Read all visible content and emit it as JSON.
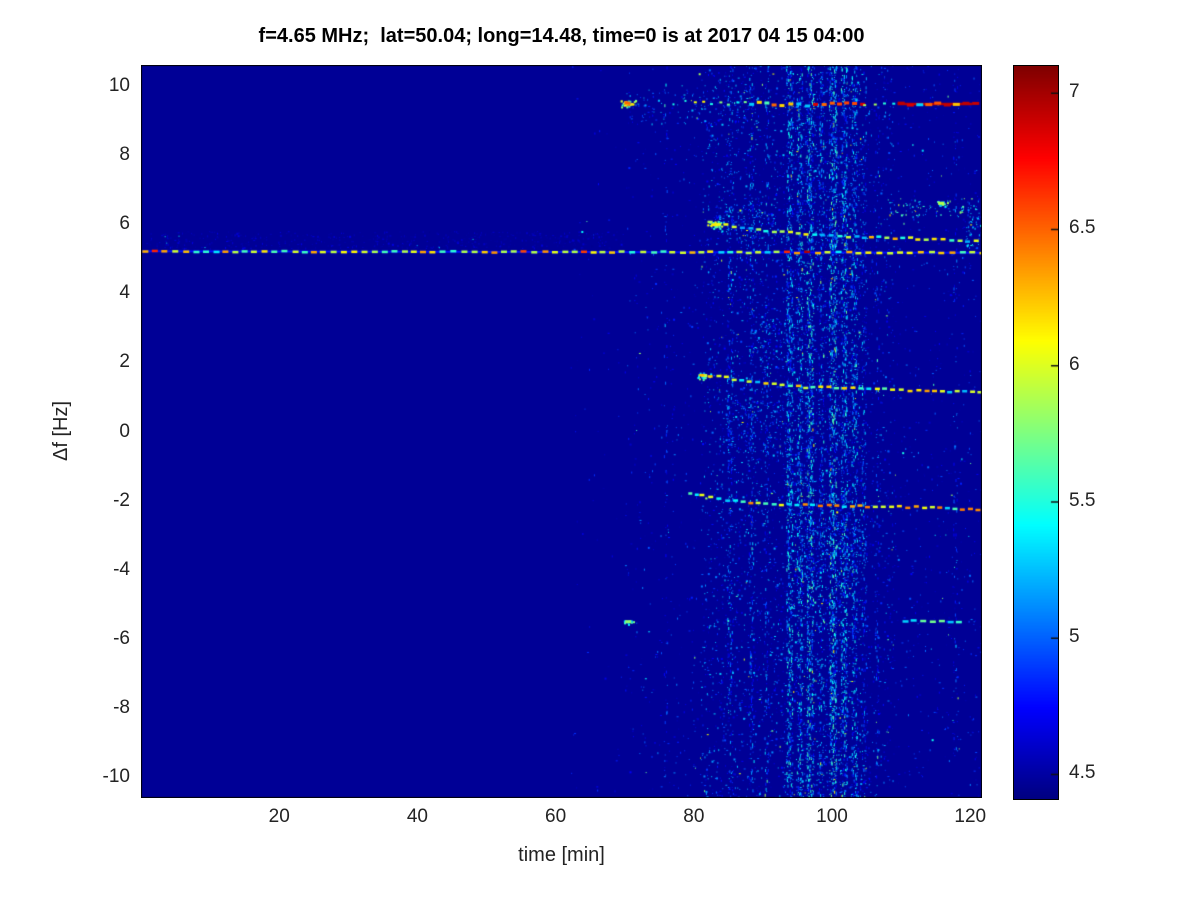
{
  "title": "f=4.65 MHz;  lat=50.04; long=14.48, time=0 is at 2017 04 15 04:00",
  "axes": {
    "xlabel": "time [min]",
    "ylabel": "Δf [Hz]",
    "x_ticks": [
      20,
      40,
      60,
      80,
      100,
      120
    ],
    "y_ticks": [
      10,
      8,
      6,
      4,
      2,
      0,
      -2,
      -4,
      -6,
      -8,
      -10
    ],
    "xlim": [
      0,
      121.7
    ],
    "ylim": [
      -10.6,
      10.6
    ]
  },
  "colorbar": {
    "ticks": [
      7,
      6.5,
      6,
      5.5,
      5,
      4.5
    ],
    "vmin": 4.41,
    "vmax": 7.1
  },
  "chart_data": {
    "type": "heatmap",
    "title": "f=4.65 MHz;  lat=50.04; long=14.48, time=0 is at 2017 04 15 04:00",
    "xlabel": "time [min]",
    "ylabel": "Δf [Hz]",
    "xlim": [
      0,
      121.7
    ],
    "ylim": [
      -10.6,
      10.6
    ],
    "caxis": [
      4.41,
      7.1
    ],
    "colormap": "jet",
    "grid": false,
    "background_value": 4.47,
    "traces": [
      {
        "name": "doppler-line-5.2Hz",
        "points": [
          [
            0.2,
            5.21
          ],
          [
            121.5,
            5.17
          ]
        ],
        "dash": 6,
        "gap": 4,
        "th": 2.5,
        "jit": 0.7,
        "base": {
          "v": 4.78,
          "th": 2
        },
        "palette": [
          [
            5.95,
            35
          ],
          [
            6.15,
            20
          ],
          [
            5.55,
            18
          ],
          [
            6.3,
            10
          ],
          [
            5.35,
            10
          ],
          [
            6.6,
            4
          ],
          [
            6.9,
            3
          ]
        ]
      },
      {
        "name": "trace-9.5Hz-dots",
        "points": [
          [
            71.5,
            9.5
          ],
          [
            80,
            9.5
          ]
        ],
        "dash": 2,
        "gap": 10,
        "th": 2,
        "jit": 2.5,
        "palette": [
          [
            5.2,
            35
          ],
          [
            5.5,
            40
          ],
          [
            5.85,
            25
          ]
        ]
      },
      {
        "name": "trace-9.5Hz-mid",
        "points": [
          [
            80,
            9.5
          ],
          [
            88,
            9.48
          ]
        ],
        "dash": 3,
        "gap": 6,
        "th": 2,
        "jit": 2,
        "palette": [
          [
            5.45,
            40
          ],
          [
            5.75,
            35
          ],
          [
            6.1,
            25
          ]
        ]
      },
      {
        "name": "trace-9.5Hz-dense",
        "points": [
          [
            88,
            9.48
          ],
          [
            104.5,
            9.45
          ]
        ],
        "dash": 5,
        "gap": 3,
        "th": 3,
        "jit": 1.8,
        "palette": [
          [
            6.9,
            22
          ],
          [
            6.55,
            18
          ],
          [
            6.2,
            20
          ],
          [
            5.6,
            22
          ],
          [
            5.25,
            18
          ]
        ]
      },
      {
        "name": "trace-9.5Hz-sparse",
        "points": [
          [
            104.5,
            9.45
          ],
          [
            109.5,
            9.45
          ]
        ],
        "dash": 3,
        "gap": 8,
        "th": 2,
        "jit": 1.5,
        "palette": [
          [
            5.45,
            50
          ],
          [
            5.9,
            30
          ],
          [
            5.15,
            20
          ]
        ]
      },
      {
        "name": "trace-9.5Hz-red",
        "points": [
          [
            109.5,
            9.47
          ],
          [
            120.3,
            9.47
          ]
        ],
        "dash": 7,
        "gap": 2.5,
        "th": 3,
        "jit": 1.2,
        "base": {
          "v": 6.95,
          "th": 2.5
        },
        "palette": [
          [
            6.9,
            35
          ],
          [
            6.55,
            20
          ],
          [
            6.25,
            18
          ],
          [
            5.65,
            15
          ],
          [
            5.35,
            12
          ]
        ]
      },
      {
        "name": "trace-5.8Hz-descending",
        "points": [
          [
            82,
            6.05
          ],
          [
            85,
            5.95
          ],
          [
            89,
            5.84
          ],
          [
            94,
            5.74
          ],
          [
            100,
            5.66
          ],
          [
            108,
            5.6
          ],
          [
            115,
            5.56
          ],
          [
            121.3,
            5.5
          ]
        ],
        "dash": 5,
        "gap": 3,
        "th": 2.5,
        "jit": 1,
        "palette": [
          [
            5.9,
            30
          ],
          [
            6.1,
            22
          ],
          [
            5.5,
            26
          ],
          [
            6.3,
            10
          ],
          [
            5.2,
            12
          ]
        ]
      },
      {
        "name": "trace-1.3Hz",
        "points": [
          [
            80.8,
            1.64
          ],
          [
            83,
            1.6
          ],
          [
            86,
            1.5
          ],
          [
            90,
            1.38
          ],
          [
            94,
            1.3
          ],
          [
            100,
            1.26
          ],
          [
            108,
            1.21
          ],
          [
            121.3,
            1.14
          ]
        ],
        "dash": 5,
        "gap": 3,
        "th": 2.5,
        "jit": 1,
        "palette": [
          [
            6.0,
            28
          ],
          [
            6.2,
            24
          ],
          [
            5.6,
            20
          ],
          [
            6.4,
            14
          ],
          [
            5.3,
            14
          ]
        ]
      },
      {
        "name": "trace-minus2Hz-lead",
        "points": [
          [
            79.2,
            -1.8
          ],
          [
            81,
            -1.86
          ]
        ],
        "dash": 4,
        "gap": 2,
        "th": 2.5,
        "jit": 0.8,
        "palette": [
          [
            5.45,
            60
          ],
          [
            5.7,
            40
          ]
        ]
      },
      {
        "name": "trace-minus2Hz",
        "points": [
          [
            80.8,
            -1.86
          ],
          [
            84,
            -1.96
          ],
          [
            88,
            -2.05
          ],
          [
            93,
            -2.12
          ],
          [
            100,
            -2.15
          ],
          [
            110,
            -2.18
          ],
          [
            121.3,
            -2.28
          ]
        ],
        "dash": 5,
        "gap": 3,
        "th": 2.5,
        "jit": 1,
        "palette": [
          [
            6.0,
            26
          ],
          [
            6.25,
            22
          ],
          [
            5.6,
            22
          ],
          [
            6.45,
            13
          ],
          [
            5.35,
            17
          ]
        ]
      },
      {
        "name": "trace-minus5.5Hz",
        "points": [
          [
            110.2,
            -5.48
          ],
          [
            118.6,
            -5.52
          ]
        ],
        "dash": 6,
        "gap": 3,
        "th": 2.5,
        "jit": 0.8,
        "palette": [
          [
            5.55,
            45
          ],
          [
            5.75,
            30
          ],
          [
            5.3,
            25
          ]
        ]
      }
    ],
    "blobs": [
      {
        "t": 70.4,
        "f": 9.5,
        "r": 5,
        "n": 32,
        "v": [
          5.4,
          6.5
        ]
      },
      {
        "t": 70.5,
        "f": -5.5,
        "r": 3.5,
        "n": 14,
        "v": [
          5.2,
          5.8
        ]
      },
      {
        "t": 83,
        "f": 5.98,
        "r": 6,
        "n": 30,
        "v": [
          5.2,
          6.15
        ]
      },
      {
        "t": 81.5,
        "f": 1.62,
        "r": 5,
        "n": 22,
        "v": [
          5.1,
          5.9
        ]
      },
      {
        "t": 115.8,
        "f": 6.6,
        "r": 4,
        "n": 16,
        "v": [
          5.2,
          5.9
        ]
      }
    ],
    "noise_regions": [
      {
        "t": [
          62,
          70
        ],
        "f": [
          -10.6,
          10.6
        ],
        "d": 0.15,
        "v": [
          4.5,
          4.9
        ]
      },
      {
        "t": [
          70,
          81
        ],
        "f": [
          -10.6,
          10.6
        ],
        "d": 0.7,
        "v": [
          4.5,
          5.1
        ]
      },
      {
        "t": [
          81,
          93.5
        ],
        "f": [
          -10.6,
          10.6
        ],
        "d": 3.5,
        "v": [
          4.5,
          5.3
        ]
      },
      {
        "t": [
          93.5,
          104.5
        ],
        "f": [
          -10.6,
          10.6
        ],
        "d": 6,
        "v": [
          4.5,
          5.4
        ]
      },
      {
        "t": [
          104.5,
          109
        ],
        "f": [
          -10.6,
          10.6
        ],
        "d": 2.5,
        "v": [
          4.5,
          5.2
        ]
      },
      {
        "t": [
          109,
          121.7
        ],
        "f": [
          -10.6,
          10.6
        ],
        "d": 0.9,
        "v": [
          4.5,
          5.1
        ]
      }
    ],
    "noise_bands": [
      {
        "t": [
          0.5,
          70
        ],
        "f": [
          5.3,
          5.8
        ],
        "d": 7,
        "v": [
          4.45,
          4.68
        ]
      },
      {
        "t": [
          70,
          88
        ],
        "f": [
          8.9,
          9.9
        ],
        "d": 3,
        "v": [
          4.7,
          5.3
        ]
      },
      {
        "t": [
          108,
          120.5
        ],
        "f": [
          6.2,
          6.75
        ],
        "d": 4,
        "v": [
          5.0,
          5.8
        ]
      },
      {
        "t": [
          88.5,
          94.5
        ],
        "f": [
          1.8,
          3.3
        ],
        "d": 6,
        "v": [
          4.7,
          5.4
        ]
      },
      {
        "t": [
          83,
          92
        ],
        "f": [
          5.5,
          6.6
        ],
        "d": 5,
        "v": [
          4.7,
          5.4
        ]
      },
      {
        "t": [
          94,
          105
        ],
        "f": [
          -4.6,
          -2.6
        ],
        "d": 4,
        "v": [
          4.7,
          5.4
        ]
      },
      {
        "t": [
          119.3,
          121.6
        ],
        "f": [
          5.3,
          6.7
        ],
        "d": 8,
        "v": [
          4.8,
          5.5
        ]
      },
      {
        "t": [
          84,
          94
        ],
        "f": [
          -0.6,
          0.9
        ],
        "d": 4.5,
        "v": [
          4.7,
          5.3
        ]
      }
    ],
    "streaks": [
      {
        "t": 75.9,
        "w": 0.5,
        "d": 3,
        "v": [
          4.6,
          5.1
        ]
      },
      {
        "t": 85.2,
        "w": 0.8,
        "d": 7,
        "v": [
          4.6,
          5.3
        ]
      },
      {
        "t": 88.3,
        "w": 0.7,
        "d": 7,
        "v": [
          4.6,
          5.3
        ]
      },
      {
        "t": 90.5,
        "w": 0.6,
        "d": 6,
        "v": [
          4.6,
          5.3
        ]
      },
      {
        "t": 93.8,
        "w": 0.9,
        "d": 14,
        "v": [
          4.7,
          5.6
        ]
      },
      {
        "t": 95.3,
        "w": 0.8,
        "d": 12,
        "v": [
          4.7,
          5.6
        ]
      },
      {
        "t": 96.8,
        "w": 1.0,
        "d": 16,
        "v": [
          4.7,
          5.7
        ]
      },
      {
        "t": 98.4,
        "w": 0.7,
        "d": 9,
        "v": [
          4.6,
          5.4
        ]
      },
      {
        "t": 100.1,
        "w": 1.1,
        "d": 18,
        "v": [
          4.7,
          5.7
        ]
      },
      {
        "t": 101.7,
        "w": 0.9,
        "d": 14,
        "v": [
          4.7,
          5.6
        ]
      },
      {
        "t": 103.2,
        "w": 0.8,
        "d": 11,
        "v": [
          4.7,
          5.5
        ]
      },
      {
        "t": 104.6,
        "w": 0.6,
        "d": 7,
        "v": [
          4.6,
          5.3
        ]
      },
      {
        "t": 106.5,
        "w": 0.5,
        "d": 4,
        "v": [
          4.6,
          5.2
        ]
      },
      {
        "t": 117.8,
        "w": 0.6,
        "d": 3,
        "v": [
          4.6,
          5.2
        ]
      }
    ]
  }
}
